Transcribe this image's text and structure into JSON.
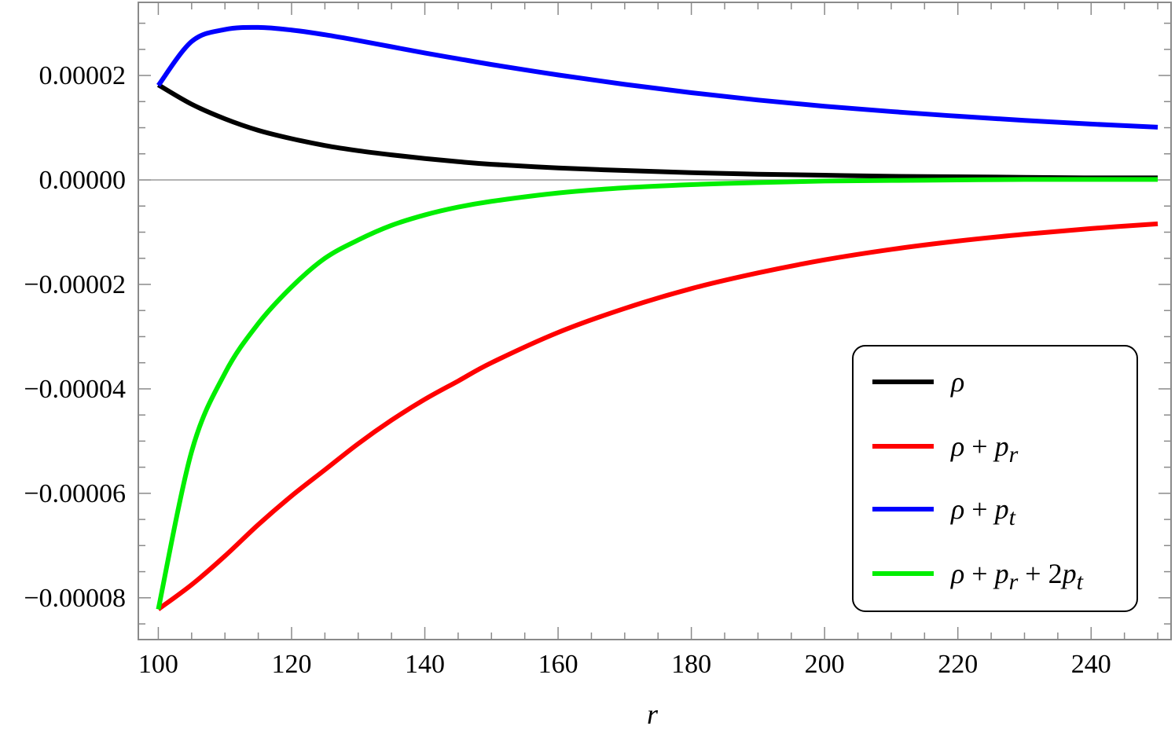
{
  "chart_data": {
    "type": "line",
    "title": "",
    "xlabel": "r",
    "ylabel": "",
    "xlim": [
      97,
      252
    ],
    "ylim": [
      -8.8e-05,
      3.4e-05
    ],
    "x_ticks": [
      100,
      120,
      140,
      160,
      180,
      200,
      220,
      240
    ],
    "x_tick_labels": [
      "100",
      "120",
      "140",
      "160",
      "180",
      "200",
      "220",
      "240"
    ],
    "y_ticks": [
      2e-05,
      0,
      -2e-05,
      -4e-05,
      -6e-05,
      -8e-05
    ],
    "y_tick_labels": [
      "0.00002",
      "0.00000",
      "−0.00002",
      "−0.00004",
      "−0.00006",
      "−0.00008"
    ],
    "x_minor_step": 5,
    "y_minor_step": 5e-06,
    "zero_line": true,
    "grid": false,
    "legend_position": "bottom-right",
    "x": [
      100,
      105,
      110,
      115,
      120,
      125,
      130,
      135,
      140,
      145,
      150,
      160,
      170,
      180,
      190,
      200,
      210,
      220,
      230,
      240,
      250
    ],
    "series": [
      {
        "name": "ρ",
        "legend_parts": [
          {
            "t": "ρ",
            "i": true
          }
        ],
        "color": "#000000",
        "values": [
          1.82e-05,
          1.45e-05,
          1.17e-05,
          9.5e-06,
          7.9e-06,
          6.6e-06,
          5.6e-06,
          4.8e-06,
          4.1e-06,
          3.5e-06,
          3e-06,
          2.3e-06,
          1.8e-06,
          1.4e-06,
          1.1e-06,
          9e-07,
          7e-07,
          6e-07,
          5e-07,
          4e-07,
          4e-07
        ]
      },
      {
        "name": "ρ + p_r",
        "legend_parts": [
          {
            "t": "ρ",
            "i": true
          },
          {
            "t": " + ",
            "i": false
          },
          {
            "t": "p",
            "i": true
          },
          {
            "t": "r",
            "i": true,
            "sub": true
          }
        ],
        "color": "#ff0000",
        "values": [
          -8.22e-05,
          -7.75e-05,
          -7.2e-05,
          -6.6e-05,
          -6.05e-05,
          -5.55e-05,
          -5.05e-05,
          -4.6e-05,
          -4.2e-05,
          -3.85e-05,
          -3.5e-05,
          -2.92e-05,
          -2.46e-05,
          -2.08e-05,
          -1.78e-05,
          -1.53e-05,
          -1.33e-05,
          -1.17e-05,
          -1.04e-05,
          -9.3e-06,
          -8.4e-06
        ]
      },
      {
        "name": "ρ + p_t",
        "legend_parts": [
          {
            "t": "ρ",
            "i": true
          },
          {
            "t": " + ",
            "i": false
          },
          {
            "t": "p",
            "i": true
          },
          {
            "t": "t",
            "i": true,
            "sub": true
          }
        ],
        "color": "#0000ff",
        "values": [
          1.81e-05,
          2.65e-05,
          2.88e-05,
          2.92e-05,
          2.87e-05,
          2.78e-05,
          2.67e-05,
          2.55e-05,
          2.43e-05,
          2.32e-05,
          2.21e-05,
          2.01e-05,
          1.83e-05,
          1.67e-05,
          1.53e-05,
          1.41e-05,
          1.31e-05,
          1.22e-05,
          1.14e-05,
          1.07e-05,
          1.01e-05
        ]
      },
      {
        "name": "ρ + p_r + 2p_t",
        "legend_parts": [
          {
            "t": "ρ",
            "i": true
          },
          {
            "t": " + ",
            "i": false
          },
          {
            "t": "p",
            "i": true
          },
          {
            "t": "r",
            "i": true,
            "sub": true
          },
          {
            "t": " + 2",
            "i": false
          },
          {
            "t": "p",
            "i": true
          },
          {
            "t": "t",
            "i": true,
            "sub": true
          }
        ],
        "color": "#00ee00",
        "values": [
          -8.22e-05,
          -5.2e-05,
          -3.7e-05,
          -2.75e-05,
          -2.05e-05,
          -1.5e-05,
          -1.15e-05,
          -8.7e-06,
          -6.7e-06,
          -5.2e-06,
          -4.1e-06,
          -2.5e-06,
          -1.5e-06,
          -9e-07,
          -5e-07,
          -2e-07,
          -1e-07,
          0.0,
          1e-07,
          1e-07,
          1e-07
        ]
      }
    ]
  }
}
